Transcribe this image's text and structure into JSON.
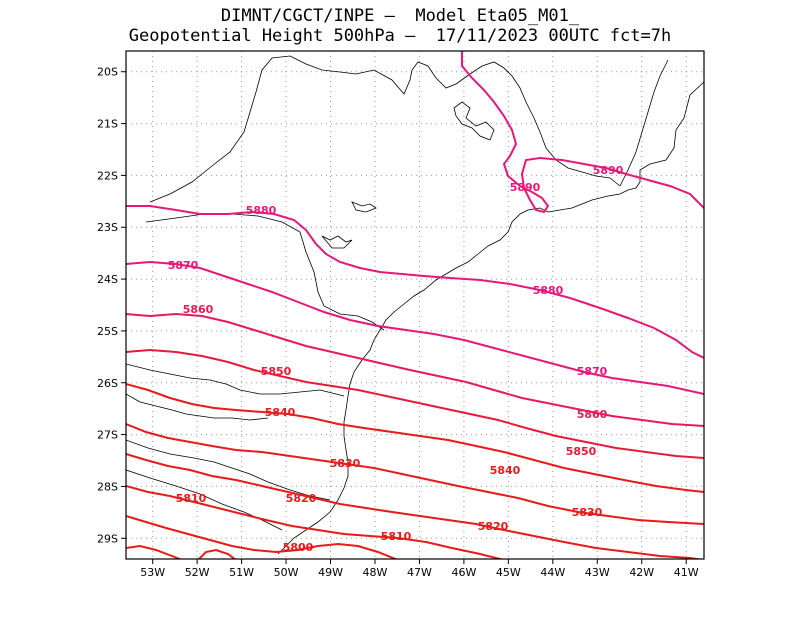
{
  "header": {
    "line1": "DIMNT/CGCT/INPE –  Model Eta05_M01_",
    "line2": "Geopotential Height 500hPa –  17/11/2023 00UTC fct=7h"
  },
  "chart_data": {
    "type": "contour_map",
    "variable": "Geopotential Height 500hPa",
    "units": "gpm",
    "lon_range": [
      -53.6,
      -40.6
    ],
    "lat_range": [
      -29.4,
      -19.6
    ],
    "x_ticks": [
      "53W",
      "52W",
      "51W",
      "50W",
      "49W",
      "48W",
      "47W",
      "46W",
      "45W",
      "44W",
      "43W",
      "42W",
      "41W"
    ],
    "y_ticks": [
      "20S",
      "21S",
      "22S",
      "23S",
      "24S",
      "25S",
      "26S",
      "27S",
      "28S",
      "29S"
    ],
    "contours": [
      {
        "level": 5890,
        "color": "#e8187a",
        "label": "5890"
      },
      {
        "level": 5880,
        "color": "#e8187a",
        "label": "5880"
      },
      {
        "level": 5870,
        "color": "#e8187a",
        "label": "5870"
      },
      {
        "level": 5860,
        "color": "#e81a5a",
        "label": "5860"
      },
      {
        "level": 5850,
        "color": "#e81a3a",
        "label": "5850"
      },
      {
        "level": 5840,
        "color": "#e81a1a",
        "label": "5840"
      },
      {
        "level": 5830,
        "color": "#e81a1a",
        "label": "5830"
      },
      {
        "level": 5820,
        "color": "#e81a1a",
        "label": "5820"
      },
      {
        "level": 5810,
        "color": "#e81a1a",
        "label": "5810"
      },
      {
        "level": 5800,
        "color": "#e81a1a",
        "label": "5800"
      }
    ],
    "labels_text": {
      "l5890a": "5890",
      "l5890b": "5890",
      "l5880a": "5880",
      "l5880b": "5880",
      "l5870a": "5870",
      "l5870b": "5870",
      "l5860a": "5860",
      "l5860b": "5860",
      "l5850a": "5850",
      "l5850b": "5850",
      "l5840a": "5840",
      "l5840b": "5840",
      "l5830a": "5830",
      "l5830b": "5830",
      "l5820a": "5820",
      "l5820b": "5820",
      "l5810a": "5810",
      "l5810b": "5810",
      "l5800a": "5800"
    }
  }
}
